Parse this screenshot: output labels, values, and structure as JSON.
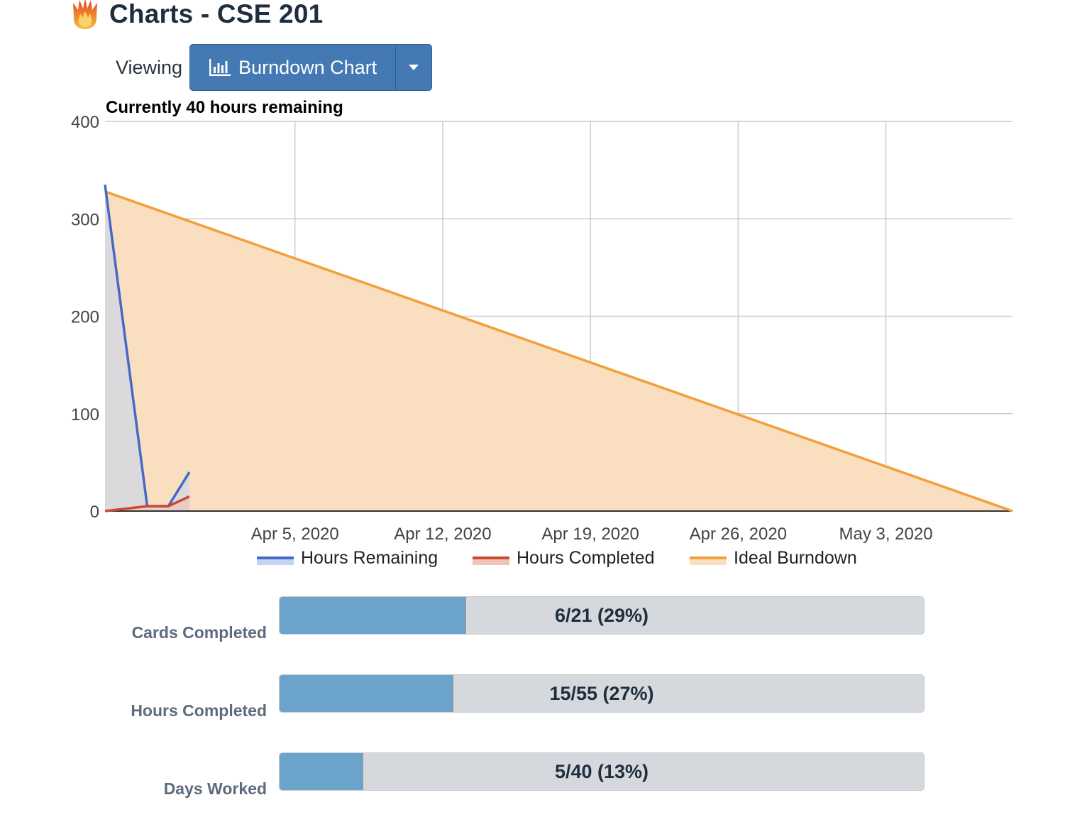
{
  "header": {
    "title": "Charts - CSE 201",
    "logo_icon": "flame-icon"
  },
  "viewing": {
    "label": "Viewing",
    "selected": "Burndown Chart",
    "icon": "bar-chart-icon",
    "caret_icon": "caret-down-icon"
  },
  "chart_data": {
    "type": "area",
    "title": "Currently 40 hours remaining",
    "xlabel": "",
    "ylabel": "",
    "ylim": [
      0,
      400
    ],
    "yticks": [
      "0",
      "100",
      "200",
      "300",
      "400"
    ],
    "xlim": [
      "2020-03-27",
      "2020-05-09"
    ],
    "xticks": [
      {
        "date": "2020-04-05",
        "label": "Apr 5, 2020"
      },
      {
        "date": "2020-04-12",
        "label": "Apr 12, 2020"
      },
      {
        "date": "2020-04-19",
        "label": "Apr 19, 2020"
      },
      {
        "date": "2020-04-26",
        "label": "Apr 26, 2020"
      },
      {
        "date": "2020-05-03",
        "label": "May 3, 2020"
      }
    ],
    "grid": true,
    "legend_position": "bottom",
    "series": [
      {
        "name": "Hours Remaining",
        "color": "#4569c6",
        "fill": "#c5d4f2",
        "points": [
          {
            "x": "2020-03-27",
            "y": 335
          },
          {
            "x": "2020-03-29",
            "y": 5
          },
          {
            "x": "2020-03-30",
            "y": 5
          },
          {
            "x": "2020-03-31",
            "y": 40
          }
        ]
      },
      {
        "name": "Hours Completed",
        "color": "#cc4a32",
        "fill": "#efc3b7",
        "points": [
          {
            "x": "2020-03-27",
            "y": 0
          },
          {
            "x": "2020-03-29",
            "y": 5
          },
          {
            "x": "2020-03-30",
            "y": 5
          },
          {
            "x": "2020-03-31",
            "y": 15
          }
        ]
      },
      {
        "name": "Ideal Burndown",
        "color": "#f2a03b",
        "fill": "#f9dfc0",
        "points": [
          {
            "x": "2020-03-27",
            "y": 328
          },
          {
            "x": "2020-05-09",
            "y": 0
          }
        ]
      }
    ]
  },
  "progress": [
    {
      "label": "Cards Completed",
      "text": "6/21 (29%)",
      "fraction": 0.29
    },
    {
      "label": "Hours Completed",
      "text": "15/55 (27%)",
      "fraction": 0.27
    },
    {
      "label": "Days Worked",
      "text": "5/40 (13%)",
      "fraction": 0.13
    }
  ]
}
